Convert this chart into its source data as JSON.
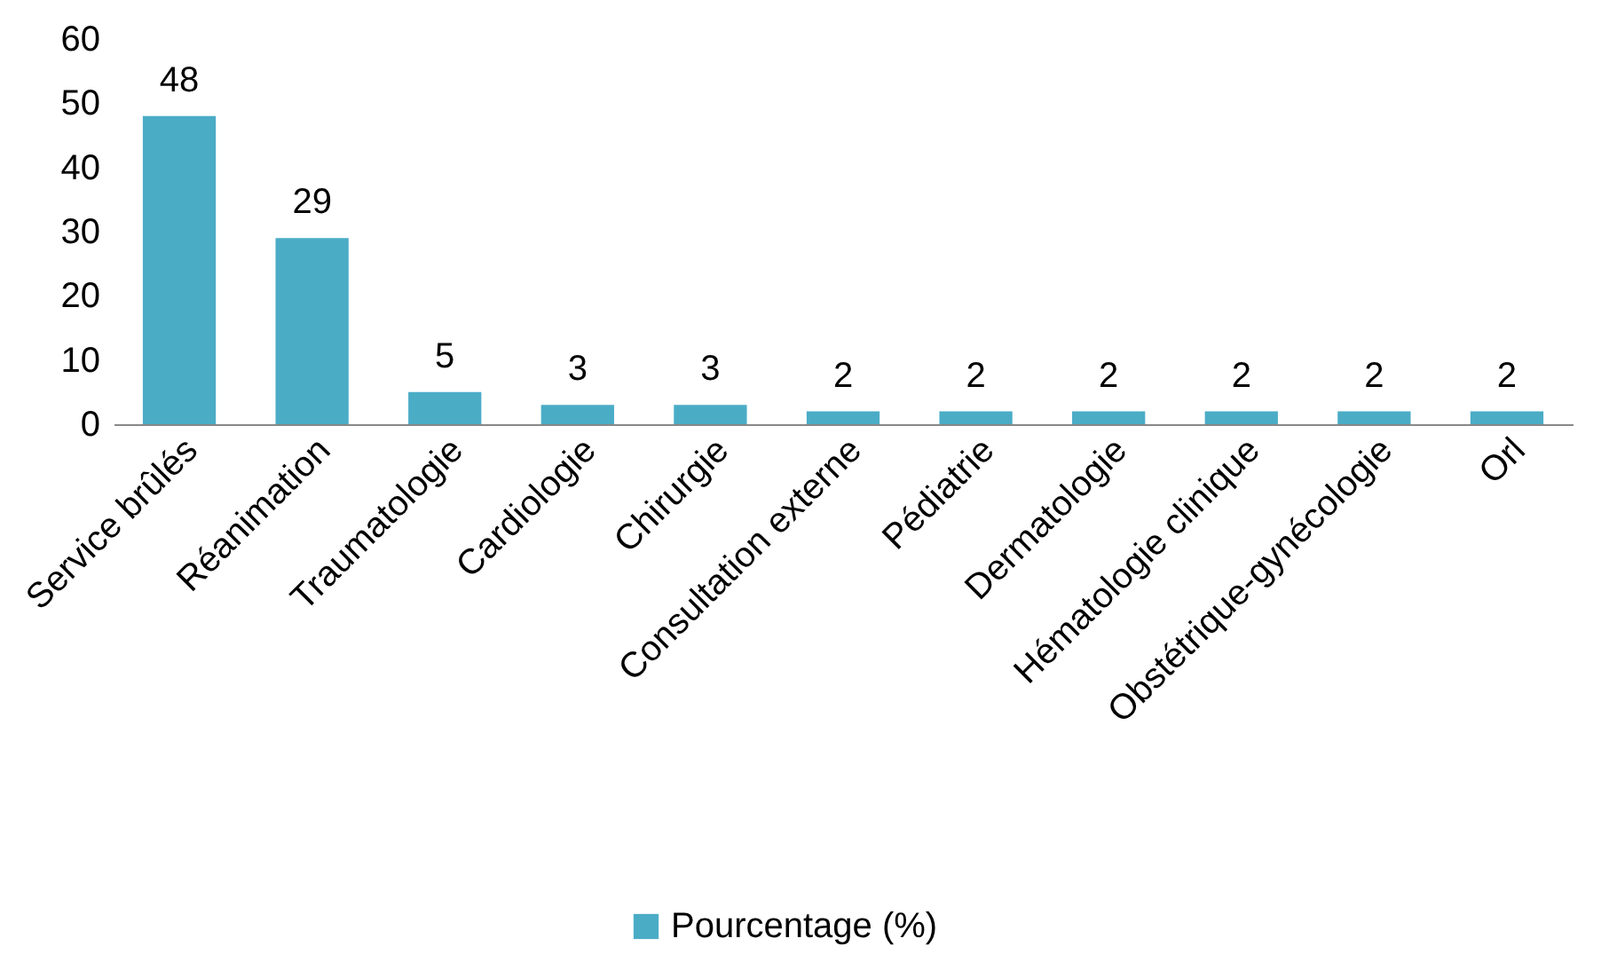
{
  "chart_data": {
    "type": "bar",
    "categories": [
      "Service brûlés",
      "Réanimation",
      "Traumatologie",
      "Cardiologie",
      "Chirurgie",
      "Consultation externe",
      "Pédiatrie",
      "Dermatologie",
      "Hématologie clinique",
      "Obstétrique-gynécologie",
      "Orl"
    ],
    "series": [
      {
        "name": "Pourcentage (%)",
        "color": "#4bacc6",
        "values": [
          48,
          29,
          5,
          3,
          3,
          2,
          2,
          2,
          2,
          2,
          2
        ]
      }
    ],
    "ylim": [
      0,
      60
    ],
    "yticks": [
      0,
      10,
      20,
      30,
      40,
      50,
      60
    ],
    "data_labels": true,
    "grid": false,
    "legend": "bottom"
  }
}
